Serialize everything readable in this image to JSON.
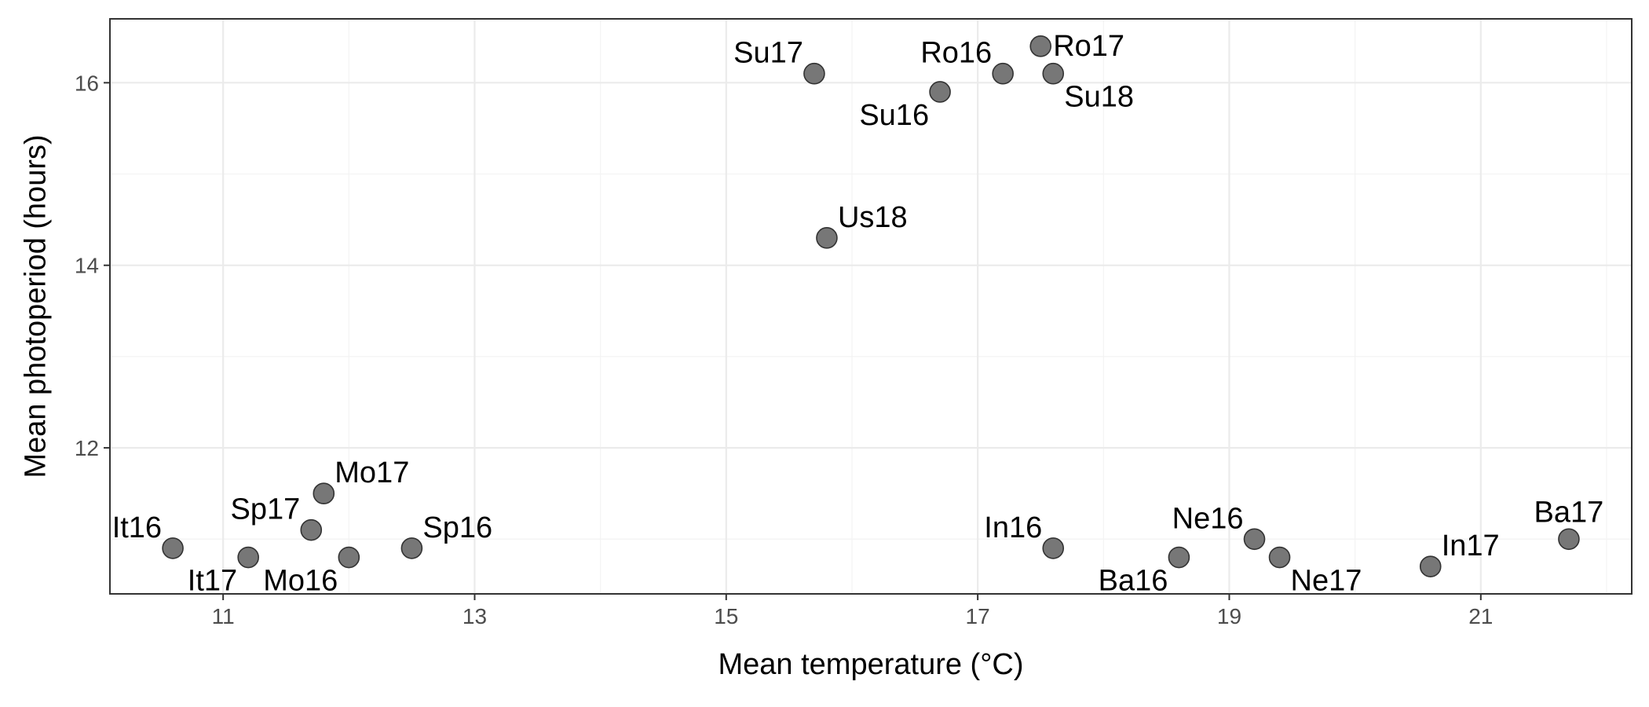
{
  "chart_data": {
    "type": "scatter",
    "title": "",
    "xlabel": "Mean temperature (°C)",
    "ylabel": "Mean photoperiod (hours)",
    "xlim": [
      10.1,
      22.2
    ],
    "ylim": [
      10.4,
      16.7
    ],
    "xticks": [
      11,
      13,
      15,
      17,
      19,
      21
    ],
    "yticks": [
      12,
      14,
      16
    ],
    "grid": true,
    "legend": "none",
    "point_color": "#777777",
    "point_outline": "#333333",
    "points": [
      {
        "label": "It16",
        "x": 10.6,
        "y": 10.9,
        "label_pos": "top-left"
      },
      {
        "label": "It17",
        "x": 11.2,
        "y": 10.8,
        "label_pos": "bottom-left"
      },
      {
        "label": "Sp17",
        "x": 11.7,
        "y": 11.1,
        "label_pos": "top-left"
      },
      {
        "label": "Mo17",
        "x": 11.8,
        "y": 11.5,
        "label_pos": "top-right"
      },
      {
        "label": "Mo16",
        "x": 12.0,
        "y": 10.8,
        "label_pos": "bottom-left"
      },
      {
        "label": "Sp16",
        "x": 12.5,
        "y": 10.9,
        "label_pos": "top-right"
      },
      {
        "label": "Su17",
        "x": 15.7,
        "y": 16.1,
        "label_pos": "top-left"
      },
      {
        "label": "Us18",
        "x": 15.8,
        "y": 14.3,
        "label_pos": "top-right"
      },
      {
        "label": "Su16",
        "x": 16.7,
        "y": 15.9,
        "label_pos": "bottom-left"
      },
      {
        "label": "Ro16",
        "x": 17.2,
        "y": 16.1,
        "label_pos": "top-left"
      },
      {
        "label": "Ro17",
        "x": 17.5,
        "y": 16.4,
        "label_pos": "right"
      },
      {
        "label": "Su18",
        "x": 17.6,
        "y": 16.1,
        "label_pos": "bottom-right"
      },
      {
        "label": "In16",
        "x": 17.6,
        "y": 10.9,
        "label_pos": "top-left"
      },
      {
        "label": "Ba16",
        "x": 18.6,
        "y": 10.8,
        "label_pos": "bottom-left"
      },
      {
        "label": "Ne16",
        "x": 19.2,
        "y": 11.0,
        "label_pos": "top-left"
      },
      {
        "label": "Ne17",
        "x": 19.4,
        "y": 10.8,
        "label_pos": "bottom-right"
      },
      {
        "label": "In17",
        "x": 20.6,
        "y": 10.7,
        "label_pos": "top-right"
      },
      {
        "label": "Ba17",
        "x": 21.7,
        "y": 11.0,
        "label_pos": "top"
      }
    ]
  }
}
